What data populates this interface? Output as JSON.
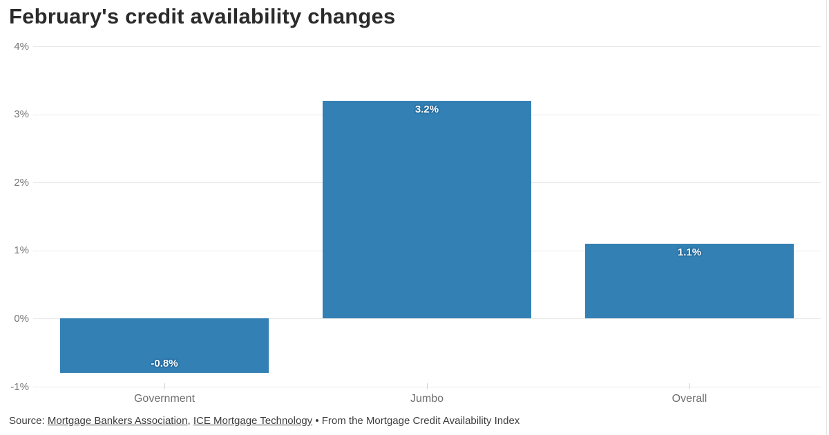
{
  "title": "February's credit availability changes",
  "chart_data": {
    "type": "bar",
    "categories": [
      "Government",
      "Jumbo",
      "Overall"
    ],
    "values": [
      -0.8,
      3.2,
      1.1
    ],
    "value_labels": [
      "-0.8%",
      "3.2%",
      "1.1%"
    ],
    "title": "February's credit availability changes",
    "xlabel": "",
    "ylabel": "",
    "ylim": [
      -1,
      4
    ],
    "yticks": [
      4,
      3,
      2,
      1,
      0,
      -1
    ],
    "ytick_labels": [
      "4%",
      "3%",
      "2%",
      "1%",
      "0%",
      "-1%"
    ],
    "grid": true,
    "legend": "none",
    "bar_color": "#3380b4",
    "label_halo_color": "#1a5d8f"
  },
  "source": {
    "prefix": "Source: ",
    "link1": "Mortgage Bankers Association",
    "separator": ", ",
    "link2": "ICE Mortgage Technology",
    "suffix": " • From the Mortgage Credit Availability Index"
  },
  "colors": {
    "bar": "#3380b4",
    "gridline": "#e9e9e9",
    "axis_label": "#757575",
    "category_label": "#6e6e6e",
    "title": "#2b2b2b",
    "source_text": "#3c3c3c"
  }
}
